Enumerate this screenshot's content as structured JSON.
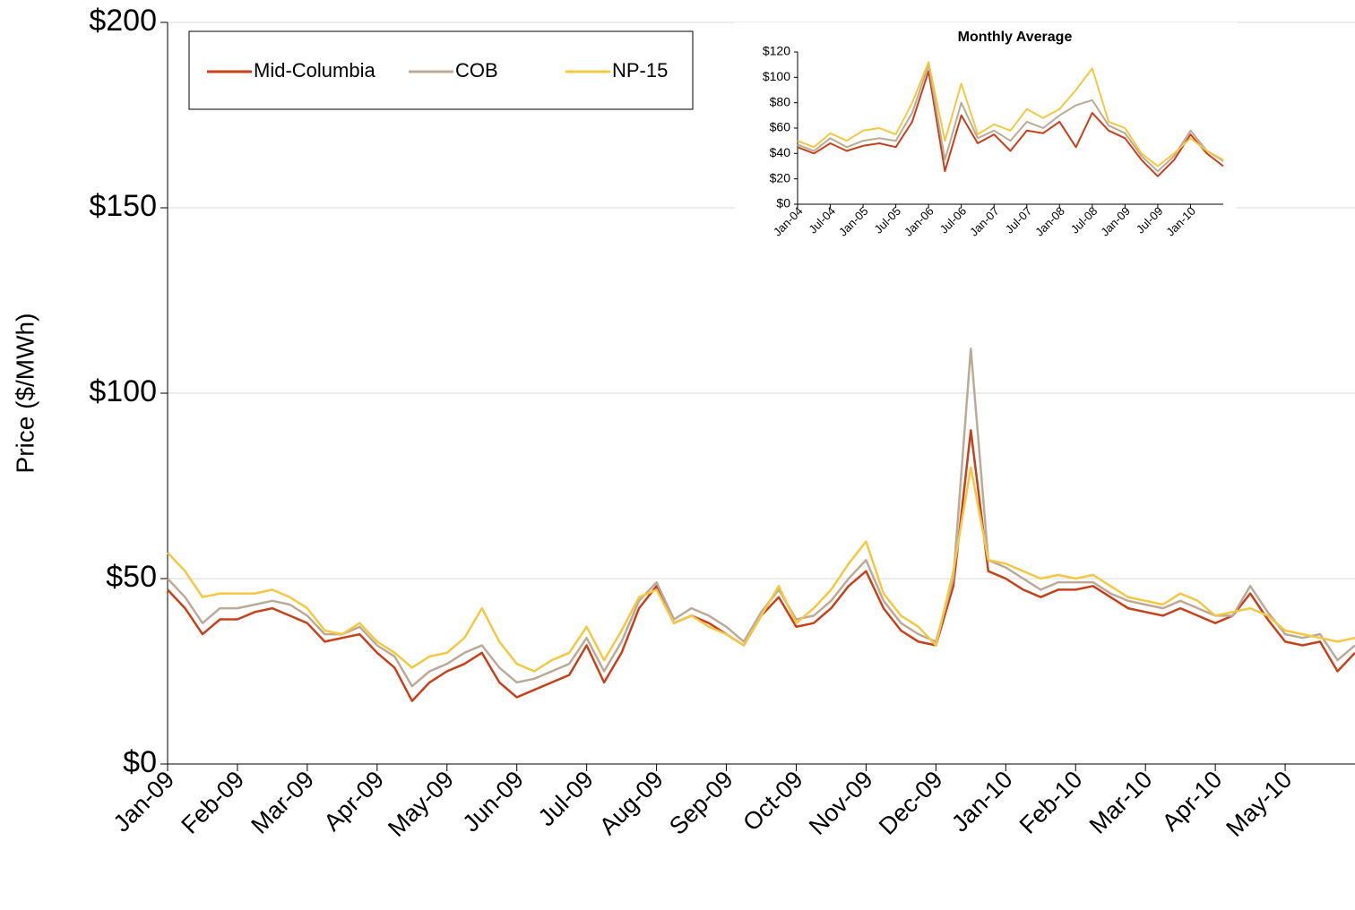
{
  "chart_data": [
    {
      "type": "line",
      "y_label": "Price ($/MWh)",
      "legend": "upper left",
      "grid": true,
      "ylim": [
        0,
        200
      ],
      "yticks": [
        {
          "value": 0,
          "label": "$0"
        },
        {
          "value": 50,
          "label": "$50"
        },
        {
          "value": 100,
          "label": "$100"
        },
        {
          "value": 150,
          "label": "$150"
        },
        {
          "value": 200,
          "label": "$200"
        }
      ],
      "categories": [
        "Jan-09",
        null,
        null,
        null,
        "Feb-09",
        null,
        null,
        null,
        "Mar-09",
        null,
        null,
        null,
        "Apr-09",
        null,
        null,
        null,
        "May-09",
        null,
        null,
        null,
        "Jun-09",
        null,
        null,
        null,
        "Jul-09",
        null,
        null,
        null,
        "Aug-09",
        null,
        null,
        null,
        "Sep-09",
        null,
        null,
        null,
        "Oct-09",
        null,
        null,
        null,
        "Nov-09",
        null,
        null,
        null,
        "Dec-09",
        null,
        null,
        null,
        "Jan-10",
        null,
        null,
        null,
        "Feb-10",
        null,
        null,
        null,
        "Mar-10",
        null,
        null,
        null,
        "Apr-10",
        null,
        null,
        null,
        "May-10",
        null,
        null,
        null,
        null
      ],
      "series": [
        {
          "name": "Mid-Columbia",
          "color": "#c8401a",
          "values": [
            47,
            42,
            35,
            39,
            39,
            41,
            42,
            40,
            38,
            33,
            34,
            35,
            30,
            26,
            17,
            22,
            25,
            27,
            30,
            22,
            18,
            20,
            22,
            24,
            32,
            22,
            30,
            42,
            48,
            38,
            40,
            38,
            35,
            32,
            40,
            45,
            37,
            38,
            42,
            48,
            52,
            42,
            36,
            33,
            32,
            48,
            90,
            52,
            50,
            47,
            45,
            47,
            47,
            48,
            45,
            42,
            41,
            40,
            42,
            40,
            38,
            40,
            46,
            39,
            33,
            32,
            33,
            25,
            30
          ]
        },
        {
          "name": "COB",
          "color": "#bcaa98",
          "values": [
            50,
            45,
            38,
            42,
            42,
            43,
            44,
            43,
            40,
            35,
            35,
            37,
            32,
            29,
            21,
            25,
            27,
            30,
            32,
            26,
            22,
            23,
            25,
            27,
            34,
            25,
            33,
            44,
            49,
            39,
            42,
            40,
            37,
            33,
            41,
            47,
            39,
            40,
            44,
            50,
            55,
            44,
            38,
            35,
            33,
            50,
            112,
            55,
            53,
            50,
            47,
            49,
            49,
            49,
            46,
            44,
            43,
            42,
            44,
            42,
            40,
            40,
            48,
            41,
            35,
            34,
            35,
            28,
            32
          ]
        },
        {
          "name": "NP-15",
          "color": "#f5c842",
          "values": [
            57,
            52,
            45,
            46,
            46,
            46,
            47,
            45,
            42,
            36,
            35,
            38,
            33,
            30,
            26,
            29,
            30,
            34,
            42,
            33,
            27,
            25,
            28,
            30,
            37,
            28,
            36,
            45,
            47,
            38,
            40,
            37,
            35,
            32,
            40,
            48,
            38,
            42,
            47,
            54,
            60,
            46,
            40,
            37,
            32,
            52,
            80,
            55,
            54,
            52,
            50,
            51,
            50,
            51,
            48,
            45,
            44,
            43,
            46,
            44,
            40,
            41,
            42,
            40,
            36,
            35,
            34,
            33,
            34
          ]
        }
      ]
    },
    {
      "type": "line",
      "title": "Monthly Average",
      "grid": false,
      "ylim": [
        0,
        120
      ],
      "yticks": [
        {
          "value": 0,
          "label": "$0"
        },
        {
          "value": 20,
          "label": "$20"
        },
        {
          "value": 40,
          "label": "$40"
        },
        {
          "value": 60,
          "label": "$60"
        },
        {
          "value": 80,
          "label": "$80"
        },
        {
          "value": 100,
          "label": "$100"
        },
        {
          "value": 120,
          "label": "$120"
        }
      ],
      "categories": [
        "Jan-04",
        null,
        "Jul-04",
        null,
        "Jan-05",
        null,
        "Jul-05",
        null,
        "Jan-06",
        null,
        "Jul-06",
        null,
        "Jan-07",
        null,
        "Jul-07",
        null,
        "Jan-08",
        null,
        "Jul-08",
        null,
        "Jan-09",
        null,
        "Jul-09",
        null,
        "Jan-10",
        null,
        null
      ],
      "series": [
        {
          "name": "Mid-Columbia",
          "color": "#c8401a",
          "values": [
            45,
            40,
            48,
            42,
            46,
            48,
            45,
            65,
            105,
            26,
            70,
            48,
            55,
            42,
            58,
            56,
            65,
            45,
            72,
            58,
            52,
            35,
            22,
            35,
            55,
            40,
            30
          ]
        },
        {
          "name": "COB",
          "color": "#bcaa98",
          "values": [
            47,
            42,
            52,
            45,
            50,
            52,
            50,
            72,
            110,
            35,
            80,
            52,
            58,
            50,
            65,
            60,
            70,
            78,
            82,
            62,
            56,
            38,
            26,
            38,
            58,
            42,
            34
          ]
        },
        {
          "name": "NP-15",
          "color": "#f5c842",
          "values": [
            50,
            45,
            56,
            50,
            58,
            60,
            55,
            80,
            112,
            50,
            95,
            55,
            63,
            58,
            75,
            68,
            75,
            90,
            107,
            65,
            60,
            40,
            30,
            40,
            52,
            42,
            35
          ]
        }
      ]
    }
  ]
}
